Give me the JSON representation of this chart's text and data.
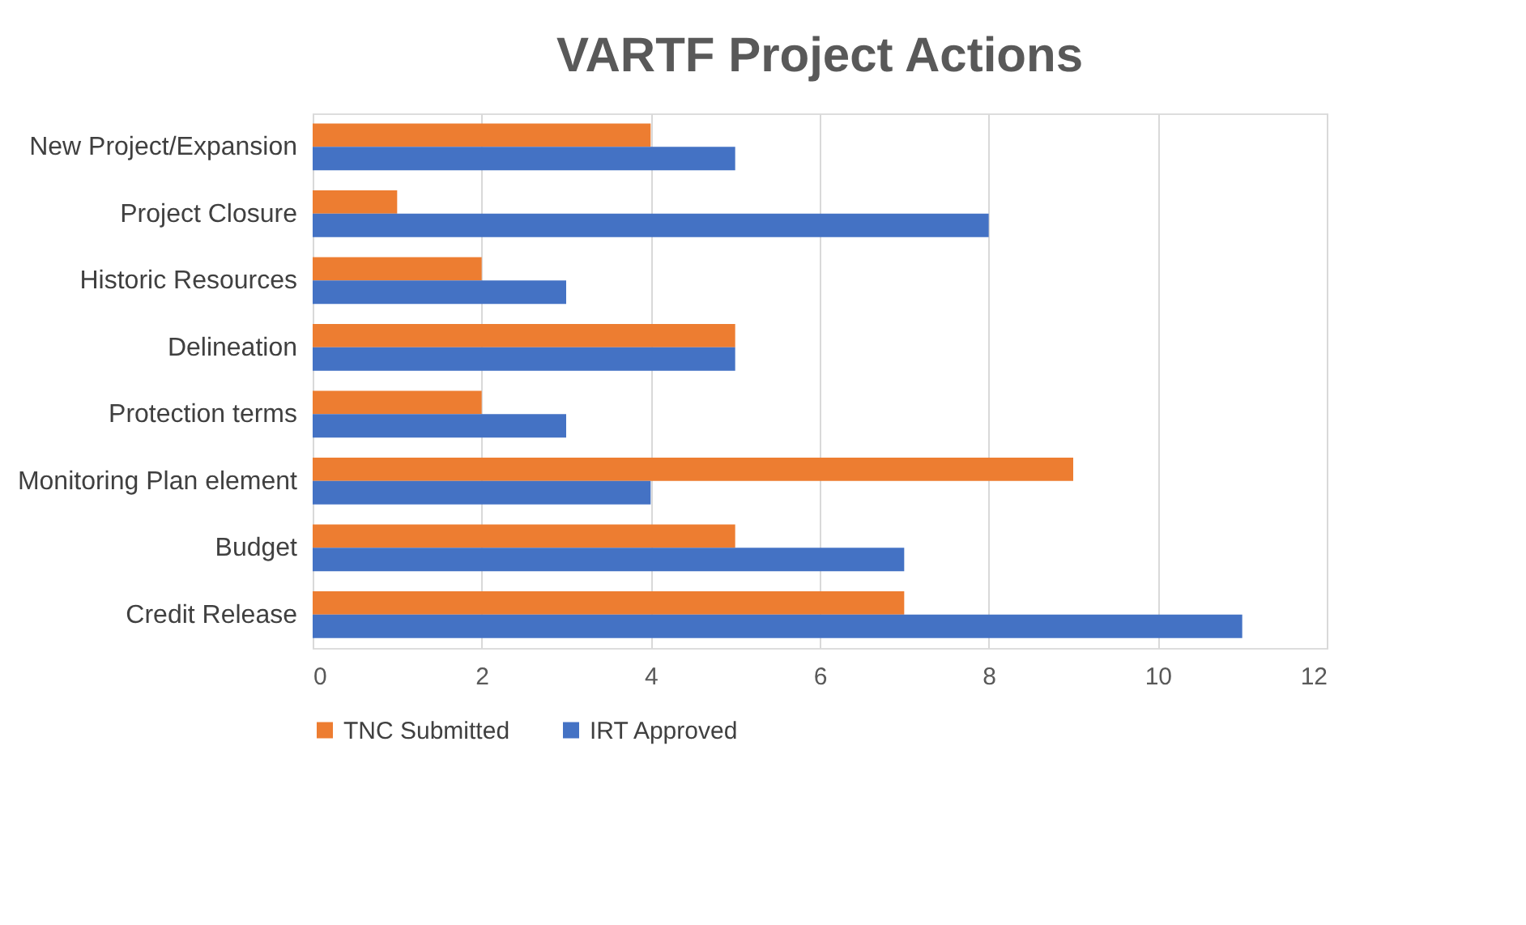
{
  "chart_data": {
    "type": "bar",
    "orientation": "horizontal",
    "title": "VARTF Project Actions",
    "categories": [
      "New Project/Expansion",
      "Project Closure",
      "Historic Resources",
      "Delineation",
      "Protection terms",
      "Monitoring Plan element",
      "Budget",
      "Credit Release"
    ],
    "series": [
      {
        "name": "TNC Submitted",
        "color": "#ed7d31",
        "values": [
          4,
          1,
          2,
          5,
          2,
          9,
          5,
          7
        ]
      },
      {
        "name": "IRT Approved",
        "color": "#4472c4",
        "values": [
          5,
          8,
          3,
          5,
          3,
          4,
          7,
          11
        ]
      }
    ],
    "xlim": [
      0,
      12
    ],
    "xticks": [
      0,
      2,
      4,
      6,
      8,
      10,
      12
    ],
    "grid": "x",
    "legend": "bottom"
  }
}
